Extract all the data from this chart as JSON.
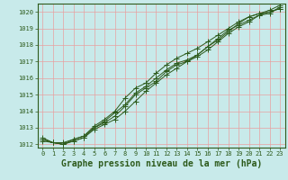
{
  "title": "Graphe pression niveau de la mer (hPa)",
  "bg_color": "#c8eaea",
  "grid_color": "#e8a0a0",
  "line_color": "#2d5a1b",
  "spine_color": "#2d5a1b",
  "xlim": [
    -0.5,
    23.5
  ],
  "ylim": [
    1011.8,
    1020.5
  ],
  "yticks": [
    1012,
    1013,
    1014,
    1015,
    1016,
    1017,
    1018,
    1019,
    1020
  ],
  "xticks": [
    0,
    1,
    2,
    3,
    4,
    5,
    6,
    7,
    8,
    9,
    10,
    11,
    12,
    13,
    14,
    15,
    16,
    17,
    18,
    19,
    20,
    21,
    22,
    23
  ],
  "series": [
    [
      1012.3,
      1012.1,
      1012.1,
      1012.3,
      1012.5,
      1013.0,
      1013.4,
      1013.9,
      1014.4,
      1015.1,
      1015.5,
      1016.0,
      1016.5,
      1016.9,
      1017.1,
      1017.4,
      1017.9,
      1018.3,
      1018.8,
      1019.3,
      1019.7,
      1019.9,
      1020.0,
      1020.2
    ],
    [
      1012.4,
      1012.1,
      1012.0,
      1012.2,
      1012.4,
      1012.9,
      1013.2,
      1013.5,
      1014.0,
      1014.6,
      1015.2,
      1015.7,
      1016.2,
      1016.6,
      1017.0,
      1017.4,
      1017.9,
      1018.4,
      1018.9,
      1019.2,
      1019.5,
      1019.8,
      1019.9,
      1020.3
    ],
    [
      1012.3,
      1012.1,
      1012.0,
      1012.3,
      1012.5,
      1013.1,
      1013.5,
      1014.0,
      1014.8,
      1015.4,
      1015.7,
      1016.3,
      1016.8,
      1017.2,
      1017.5,
      1017.8,
      1018.2,
      1018.6,
      1019.0,
      1019.4,
      1019.7,
      1019.9,
      1020.1,
      1020.4
    ],
    [
      1012.2,
      1012.1,
      1012.0,
      1012.2,
      1012.4,
      1013.0,
      1013.3,
      1013.7,
      1014.3,
      1015.0,
      1015.4,
      1015.8,
      1016.4,
      1016.8,
      1017.0,
      1017.3,
      1017.7,
      1018.2,
      1018.7,
      1019.1,
      1019.4,
      1019.8,
      1020.0,
      1020.2
    ]
  ],
  "marker": "+",
  "markersize": 4,
  "linewidth": 0.7,
  "title_fontsize": 7,
  "tick_fontsize": 5
}
